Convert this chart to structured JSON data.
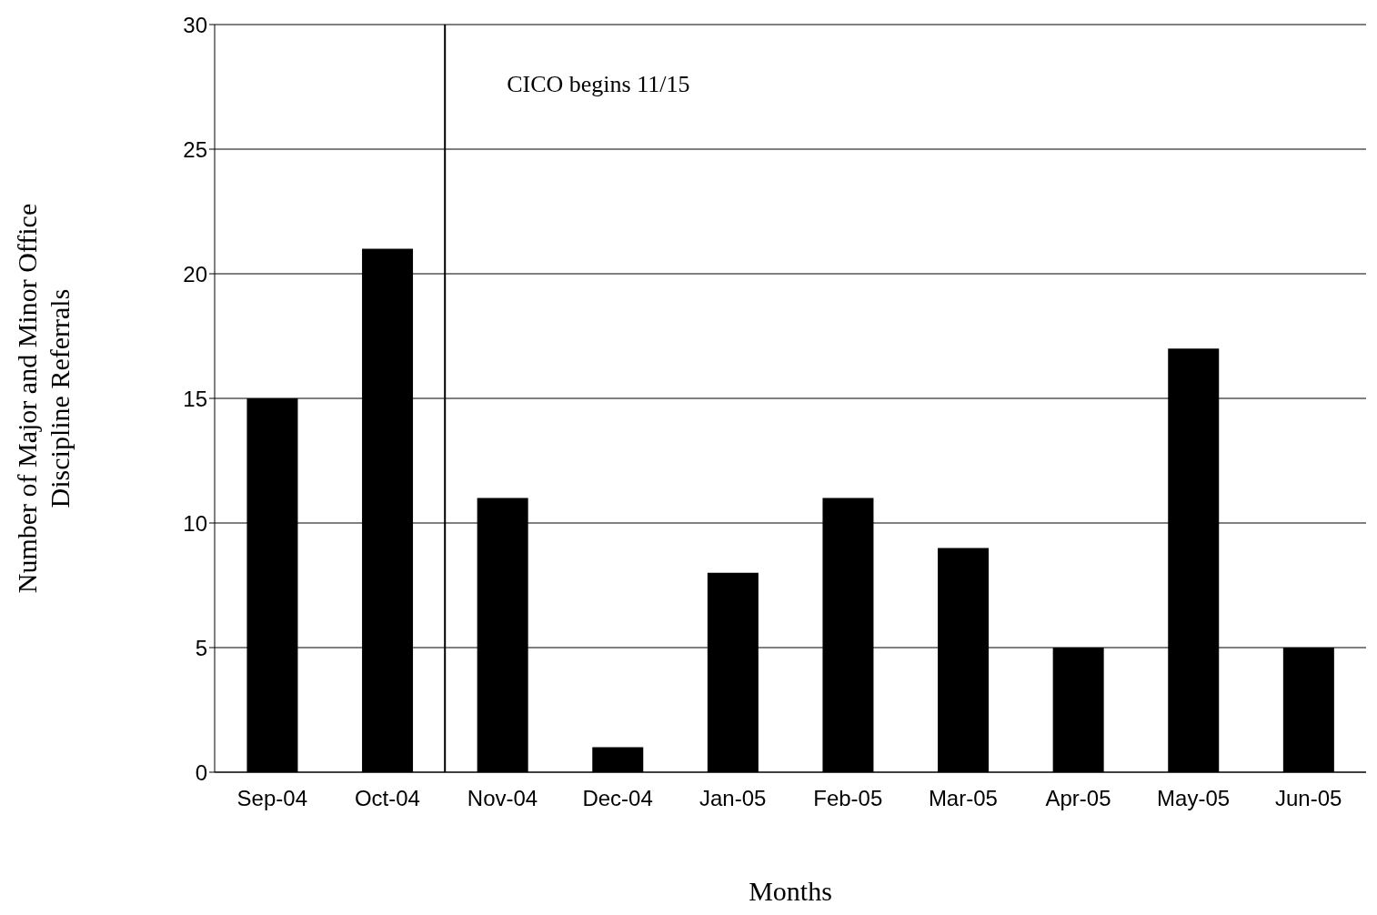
{
  "chart_data": {
    "type": "bar",
    "xlabel": "Months",
    "ylabel": "Number of Major and Minor Office\nDiscipline Referrals",
    "categories": [
      "Sep-04",
      "Oct-04",
      "Nov-04",
      "Dec-04",
      "Jan-05",
      "Feb-05",
      "Mar-05",
      "Apr-05",
      "May-05",
      "Jun-05"
    ],
    "values": [
      15,
      21,
      11,
      1,
      8,
      11,
      9,
      5,
      17,
      5
    ],
    "color": "#000000",
    "ylim": [
      0,
      30
    ],
    "yticks": [
      0,
      5,
      10,
      15,
      20,
      25,
      30
    ],
    "grid": "y",
    "ref_lines": [
      {
        "axis": "x",
        "value": "Nov-04",
        "label": "CICO begins 11/15",
        "color": "#000000"
      }
    ]
  }
}
